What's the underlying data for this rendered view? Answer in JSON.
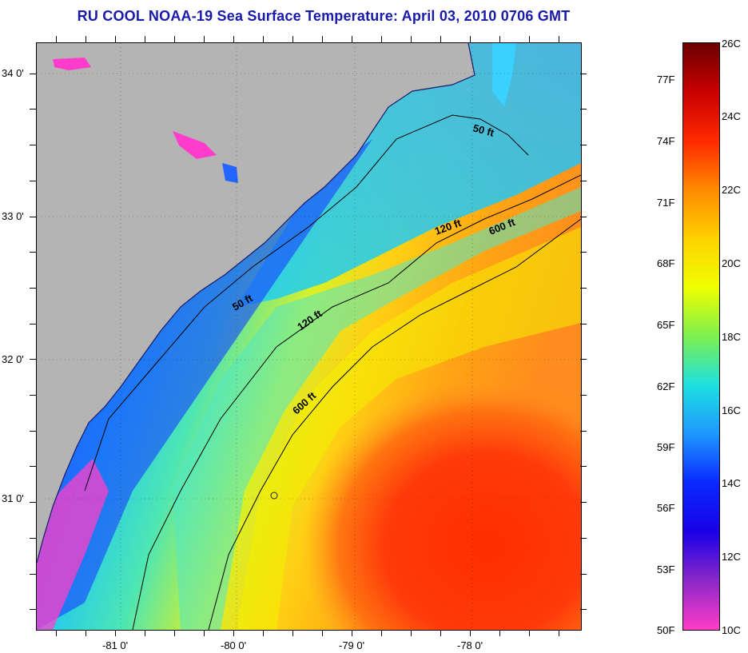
{
  "title": "RU COOL  NOAA-19  Sea Surface Temperature:  April 03, 2010 0706 GMT",
  "map": {
    "lat_labels": [
      "34 0'",
      "33 0'",
      "32 0'",
      "31 0'"
    ],
    "lon_labels": [
      "-81 0'",
      "-80 0'",
      "-79 0'",
      "-78 0'"
    ],
    "contours": [
      {
        "label": "50 ft"
      },
      {
        "label": "50 ft"
      },
      {
        "label": "120 ft"
      },
      {
        "label": "120 ft"
      },
      {
        "label": "600 ft"
      },
      {
        "label": "600 ft"
      }
    ]
  },
  "colorbar": {
    "fahrenheit": [
      "77F",
      "74F",
      "71F",
      "68F",
      "65F",
      "62F",
      "59F",
      "56F",
      "53F",
      "50F"
    ],
    "celsius": [
      "26C",
      "24C",
      "22C",
      "20C",
      "18C",
      "16C",
      "14C",
      "12C",
      "10C"
    ],
    "colors": [
      "#6b0000",
      "#c80000",
      "#ff2a00",
      "#ff8a00",
      "#ffd200",
      "#f0ff00",
      "#7cf050",
      "#1ee0e0",
      "#1e96ff",
      "#0a28ff",
      "#1a00e6",
      "#8c28c8",
      "#ff3cc8"
    ]
  }
}
